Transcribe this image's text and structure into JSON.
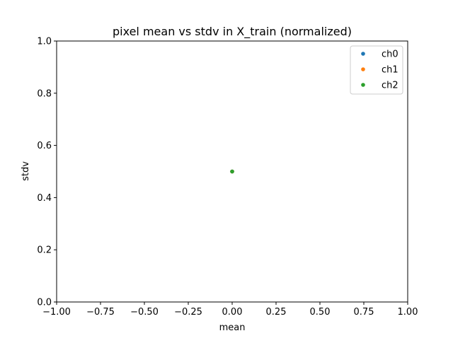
{
  "chart_data": {
    "type": "scatter",
    "title": "pixel mean vs stdv in X_train (normalized)",
    "xlabel": "mean",
    "ylabel": "stdv",
    "xlim": [
      -1.0,
      1.0
    ],
    "ylim": [
      0.0,
      1.0
    ],
    "xticks": [
      "−1.00",
      "−0.75",
      "−0.50",
      "−0.25",
      "0.00",
      "0.25",
      "0.50",
      "0.75",
      "1.00"
    ],
    "xtick_values": [
      -1.0,
      -0.75,
      -0.5,
      -0.25,
      0.0,
      0.25,
      0.5,
      0.75,
      1.0
    ],
    "yticks": [
      "0.0",
      "0.2",
      "0.4",
      "0.6",
      "0.8",
      "1.0"
    ],
    "ytick_values": [
      0.0,
      0.2,
      0.4,
      0.6,
      0.8,
      1.0
    ],
    "grid": false,
    "legend_position": "top-right",
    "series": [
      {
        "name": "ch0",
        "color": "#1f77b4",
        "points": [
          {
            "x": 0.0,
            "y": 0.5
          }
        ]
      },
      {
        "name": "ch1",
        "color": "#ff7f0e",
        "points": [
          {
            "x": 0.0,
            "y": 0.5
          }
        ]
      },
      {
        "name": "ch2",
        "color": "#2ca02c",
        "points": [
          {
            "x": 0.0,
            "y": 0.5
          }
        ]
      }
    ]
  }
}
